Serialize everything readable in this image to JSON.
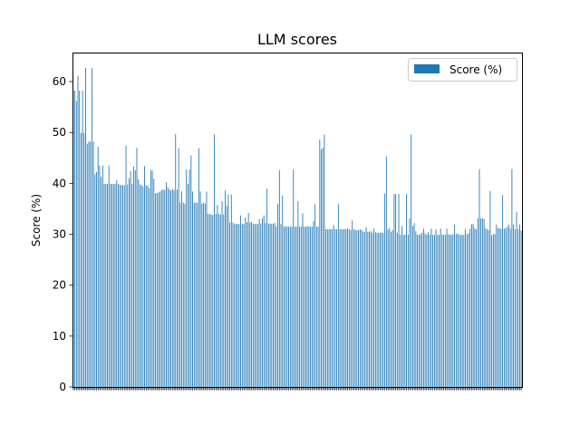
{
  "chart_data": {
    "type": "bar",
    "title": "LLM scores",
    "xlabel": "",
    "ylabel": "Score (%)",
    "ylim": [
      0,
      65.7
    ],
    "yticks": [
      0,
      10,
      20,
      30,
      40,
      50,
      60
    ],
    "grid": false,
    "legend_position": "top-right",
    "bar_color": "#1f77b4",
    "series": [
      {
        "name": "Score (%)",
        "values": [
          58.2,
          58.2,
          56.2,
          61.1,
          58.2,
          49.9,
          58.2,
          49.9,
          62.7,
          47.8,
          48.2,
          48.2,
          62.7,
          48.2,
          41.8,
          42.2,
          47.2,
          43.5,
          41.3,
          43.5,
          39.9,
          39.9,
          39.9,
          43.5,
          39.9,
          39.9,
          39.9,
          39.9,
          40.6,
          39.9,
          39.7,
          39.7,
          39.6,
          39.6,
          47.4,
          39.8,
          41.0,
          42.4,
          39.9,
          43.3,
          42.6,
          47.0,
          40.8,
          39.8,
          39.7,
          39.4,
          43.4,
          39.6,
          39.6,
          39.1,
          42.6,
          42.5,
          40.9,
          38.0,
          38.1,
          38.2,
          38.4,
          38.7,
          38.8,
          38.7,
          40.2,
          39.2,
          38.8,
          38.6,
          38.9,
          38.7,
          49.7,
          38.8,
          46.9,
          36.2,
          38.4,
          36.2,
          36.0,
          42.7,
          39.9,
          42.7,
          45.5,
          38.4,
          36.2,
          36.2,
          36.2,
          46.9,
          38.4,
          36.0,
          36.2,
          36.0,
          38.4,
          34.0,
          34.0,
          33.9,
          33.8,
          49.6,
          34.0,
          35.8,
          34.0,
          33.9,
          36.5,
          33.9,
          38.6,
          35.6,
          37.8,
          32.3,
          37.8,
          32.3,
          32.0,
          32.1,
          32.0,
          32.0,
          33.7,
          32.0,
          32.0,
          33.3,
          32.4,
          34.2,
          32.3,
          32.4,
          32.1,
          32.0,
          32.0,
          32.0,
          33.0,
          32.1,
          33.2,
          33.7,
          32.2,
          39.0,
          32.1,
          32.1,
          32.0,
          32.1,
          32.2,
          31.5,
          36.0,
          42.6,
          32.0,
          37.6,
          31.5,
          31.6,
          31.5,
          31.5,
          31.5,
          31.5,
          42.7,
          31.5,
          31.5,
          36.5,
          31.5,
          31.5,
          34.1,
          31.5,
          31.5,
          31.6,
          31.5,
          31.5,
          31.5,
          32.6,
          35.9,
          31.5,
          31.5,
          48.6,
          46.7,
          47.0,
          49.6,
          31.0,
          31.0,
          31.0,
          31.0,
          31.0,
          31.8,
          31.0,
          31.0,
          36.0,
          31.0,
          31.0,
          31.0,
          31.0,
          31.0,
          31.2,
          31.0,
          30.8,
          32.7,
          31.0,
          30.8,
          30.8,
          30.8,
          31.0,
          30.8,
          30.5,
          30.5,
          31.4,
          30.5,
          30.5,
          30.6,
          30.3,
          31.1,
          30.4,
          30.3,
          30.3,
          30.3,
          30.4,
          30.2,
          38.0,
          45.3,
          30.9,
          31.2,
          30.5,
          30.8,
          37.9,
          37.9,
          30.3,
          37.9,
          29.9,
          31.6,
          29.9,
          29.9,
          37.9,
          29.9,
          33.1,
          49.6,
          31.6,
          32.2,
          30.6,
          29.9,
          29.9,
          30.0,
          30.3,
          31.1,
          30.2,
          29.9,
          30.4,
          29.9,
          31.1,
          29.9,
          29.9,
          31.0,
          29.9,
          29.9,
          31.1,
          29.9,
          29.9,
          29.9,
          31.1,
          30.0,
          29.9,
          29.9,
          30.0,
          31.9,
          30.0,
          30.2,
          29.9,
          29.9,
          29.9,
          29.9,
          31.0,
          30.0,
          30.2,
          31.1,
          32.0,
          32.0,
          31.2,
          31.0,
          33.1,
          42.8,
          33.1,
          33.1,
          33.0,
          31.2,
          31.0,
          30.8,
          38.5,
          29.8,
          30.1,
          30.0,
          31.9,
          31.2,
          31.2,
          31.1,
          37.7,
          31.1,
          31.2,
          31.5,
          31.9,
          31.1,
          42.8,
          31.9,
          31.0,
          34.4,
          31.0,
          31.9,
          30.7
        ]
      }
    ]
  }
}
